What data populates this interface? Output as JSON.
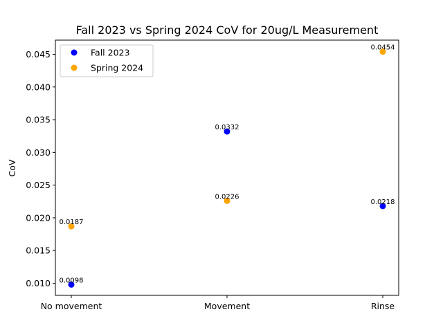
{
  "chart_data": {
    "type": "scatter",
    "title": "Fall 2023 vs Spring 2024 CoV for 20ug/L Measurement",
    "xlabel": "",
    "ylabel": "CoV",
    "categories": [
      "No movement",
      "Movement",
      "Rinse"
    ],
    "ylim": [
      0.0083,
      0.0472
    ],
    "yticks": [
      0.01,
      0.015,
      0.02,
      0.025,
      0.03,
      0.035,
      0.04,
      0.045
    ],
    "ytick_labels": [
      "0.010",
      "0.015",
      "0.020",
      "0.025",
      "0.030",
      "0.035",
      "0.040",
      "0.045"
    ],
    "grid": false,
    "legend": "top-left",
    "series": [
      {
        "name": "Fall 2023",
        "color": "#0000ff",
        "values": [
          0.0098,
          0.0332,
          0.0218
        ],
        "labels": [
          "0.0098",
          "0.0332",
          "0.0218"
        ]
      },
      {
        "name": "Spring 2024",
        "color": "#ffa500",
        "values": [
          0.0187,
          0.0226,
          0.0454
        ],
        "labels": [
          "0.0187",
          "0.0226",
          "0.0454"
        ]
      }
    ]
  }
}
